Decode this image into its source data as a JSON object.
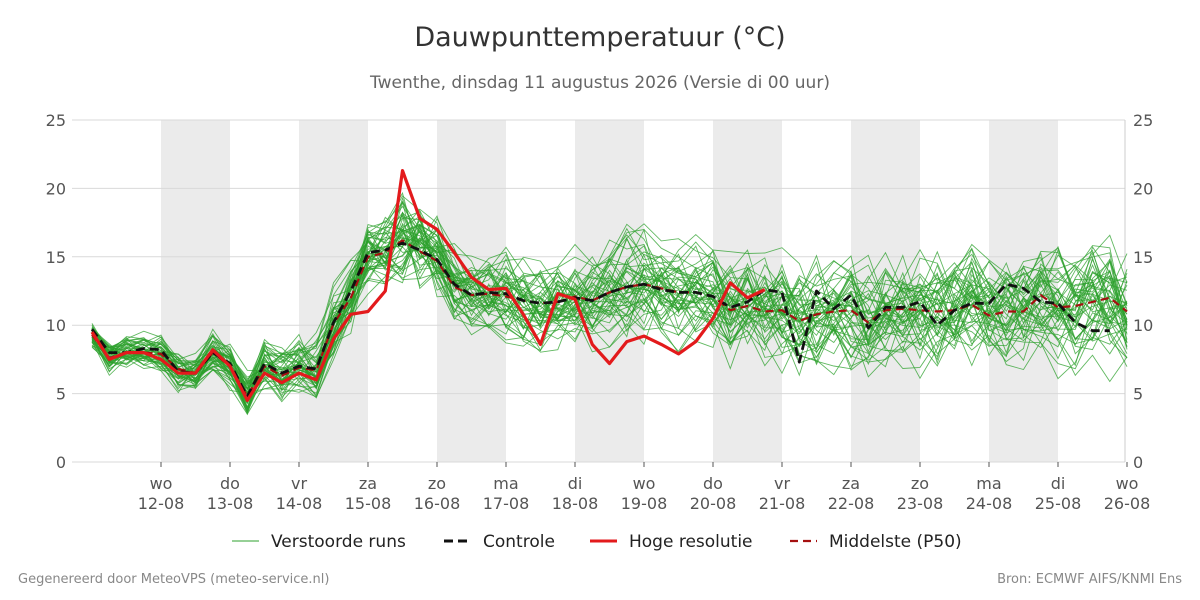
{
  "title": "Dauwpunttemperatuur (°C)",
  "subtitle": "Twenthe, dinsdag 11 augustus 2026 (Versie di 00 uur)",
  "footer": {
    "left": "Gegenereerd door MeteoVPS (meteo-service.nl)",
    "right": "Bron: ECMWF AIFS/KNMI Ens"
  },
  "colors": {
    "ensemble": "#2ca02c",
    "control": "#111111",
    "high_res": "#e31a1c",
    "median": "#a51010",
    "weekend_band": "#ebebeb",
    "grid": "#d9d9d9"
  },
  "chart_data": {
    "type": "line",
    "title": "Dauwpunttemperatuur (°C)",
    "ylim": [
      0,
      25
    ],
    "yticks": [
      0,
      5,
      10,
      15,
      20,
      25
    ],
    "grid": true,
    "legend_position": "bottom",
    "x_start": "2026-08-11T00:00",
    "step_hours": 6,
    "x_end": "2026-08-26T00:00",
    "day_ticks": [
      {
        "day": "wo",
        "date": "12-08"
      },
      {
        "day": "do",
        "date": "13-08"
      },
      {
        "day": "vr",
        "date": "14-08"
      },
      {
        "day": "za",
        "date": "15-08"
      },
      {
        "day": "zo",
        "date": "16-08"
      },
      {
        "day": "ma",
        "date": "17-08"
      },
      {
        "day": "di",
        "date": "18-08"
      },
      {
        "day": "wo",
        "date": "19-08"
      },
      {
        "day": "do",
        "date": "20-08"
      },
      {
        "day": "vr",
        "date": "21-08"
      },
      {
        "day": "za",
        "date": "22-08"
      },
      {
        "day": "zo",
        "date": "23-08"
      },
      {
        "day": "ma",
        "date": "24-08"
      },
      {
        "day": "di",
        "date": "25-08"
      },
      {
        "day": "wo",
        "date": "26-08"
      }
    ],
    "shaded_days": [
      "12-08",
      "14-08",
      "16-08",
      "18-08",
      "20-08",
      "22-08",
      "24-08"
    ],
    "legend": [
      {
        "label": "Verstoorde runs",
        "style": "thin-green"
      },
      {
        "label": "Controle",
        "style": "dashed-black"
      },
      {
        "label": "Hoge resolutie",
        "style": "solid-red"
      },
      {
        "label": "Middelste (P50)",
        "style": "dashed-darkred"
      }
    ],
    "series": [
      {
        "name": "Hoge resolutie",
        "values": [
          9.5,
          7.5,
          8,
          8,
          7.5,
          6.5,
          6.5,
          8.2,
          7,
          4.5,
          6.5,
          5.8,
          6.5,
          6,
          9,
          10.8,
          11,
          12.5,
          21.3,
          17.8,
          17,
          15.3,
          13.5,
          12.6,
          12.7,
          10.8,
          8.6,
          12.3,
          11.9,
          8.6,
          7.2,
          8.8,
          9.2,
          8.6,
          7.9,
          8.8,
          10.5,
          13.1,
          12,
          12.6
        ]
      },
      {
        "name": "Controle",
        "values": [
          9.7,
          8,
          8,
          8.3,
          8.2,
          6.6,
          6.5,
          8,
          7.2,
          4.8,
          7.2,
          6.5,
          7,
          6.8,
          10.2,
          12.5,
          15.3,
          15.5,
          16,
          15.5,
          14.8,
          13,
          12.2,
          12.4,
          12.3,
          11.8,
          11.6,
          11.7,
          12,
          11.8,
          12.4,
          12.8,
          13,
          12.6,
          12.4,
          12.4,
          12.1,
          11.3,
          11.7,
          12.6,
          12.4,
          7.3,
          12.5,
          11.2,
          12.2,
          9.8,
          11.3,
          11.3,
          11.7,
          10,
          11.1,
          11.6,
          11.6,
          13,
          12.7,
          11.7,
          11.6,
          10.2,
          9.6,
          9.6
        ]
      },
      {
        "name": "Middelste (P50)",
        "values": [
          9.3,
          7.6,
          8,
          8,
          7.9,
          6.8,
          6.5,
          8,
          7,
          4.8,
          7,
          6.3,
          6.9,
          6.7,
          10.1,
          12,
          15,
          15.3,
          16.2,
          15.4,
          14.7,
          12.8,
          12.2,
          12.3,
          12.1,
          11.8,
          11.6,
          11.7,
          12.1,
          11.8,
          12.4,
          12.8,
          13,
          12.7,
          12.4,
          12.4,
          12.1,
          11.1,
          11.4,
          11,
          11.1,
          10.3,
          10.8,
          11,
          11.1,
          10.2,
          11.1,
          11.2,
          11.1,
          11,
          11.1,
          11.5,
          10.7,
          11,
          11,
          12.2,
          11.3,
          11.4,
          11.7,
          12,
          11
        ]
      }
    ],
    "ensemble_members": 50,
    "ensemble_spread": "approx. 4-22 °C"
  }
}
